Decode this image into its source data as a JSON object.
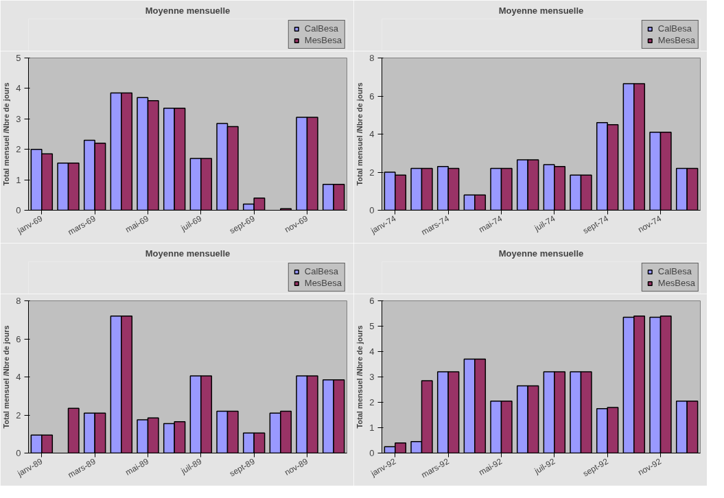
{
  "chart_data": [
    {
      "type": "bar",
      "title": "Moyenne mensuelle",
      "ylabel": "Total mensuel /Nbre de jours",
      "categories": [
        "janv-69",
        null,
        "mars-69",
        null,
        "mai-69",
        null,
        "juil-69",
        null,
        "sept-69",
        null,
        "nov-69",
        null
      ],
      "ylim": [
        0,
        5
      ],
      "yticks": [
        0,
        1,
        2,
        3,
        4,
        5
      ],
      "legend": "top right",
      "series": [
        {
          "name": "CalBesa",
          "color": "#9999ff",
          "values": [
            2.0,
            1.55,
            2.3,
            3.85,
            3.7,
            3.35,
            1.7,
            2.85,
            0.2,
            null,
            3.05,
            0.85
          ]
        },
        {
          "name": "MesBesa",
          "color": "#993366",
          "values": [
            1.85,
            1.55,
            2.2,
            3.85,
            3.6,
            3.35,
            1.7,
            2.75,
            0.4,
            0.05,
            3.05,
            0.85
          ]
        }
      ]
    },
    {
      "type": "bar",
      "title": "Moyenne mensuelle",
      "ylabel": "Total mensuel /Nbre de jours",
      "categories": [
        "janv-74",
        null,
        "mars-74",
        null,
        "mai-74",
        null,
        "juil-74",
        null,
        "sept-74",
        null,
        "nov-74",
        null
      ],
      "ylim": [
        0,
        8
      ],
      "yticks": [
        0,
        2,
        4,
        6,
        8
      ],
      "legend": "top right",
      "series": [
        {
          "name": "CalBesa",
          "color": "#9999ff",
          "values": [
            2.0,
            2.2,
            2.3,
            0.8,
            2.2,
            2.65,
            2.4,
            1.85,
            4.6,
            6.65,
            4.1,
            2.2
          ]
        },
        {
          "name": "MesBesa",
          "color": "#993366",
          "values": [
            1.85,
            2.2,
            2.2,
            0.8,
            2.2,
            2.65,
            2.3,
            1.85,
            4.5,
            6.65,
            4.1,
            2.2
          ]
        }
      ]
    },
    {
      "type": "bar",
      "title": "Moyenne mensuelle",
      "ylabel": "Total mensuel /Nbre de jours",
      "categories": [
        "janv-89",
        null,
        "mars-89",
        null,
        "mai-89",
        null,
        "juil-89",
        null,
        "sept-89",
        null,
        "nov-89",
        null
      ],
      "ylim": [
        0,
        8
      ],
      "yticks": [
        0,
        2,
        4,
        6,
        8
      ],
      "legend": "top right",
      "series": [
        {
          "name": "CalBesa",
          "color": "#9999ff",
          "values": [
            0.95,
            null,
            2.1,
            7.2,
            1.75,
            1.55,
            4.05,
            2.2,
            1.05,
            2.1,
            4.05,
            3.85
          ]
        },
        {
          "name": "MesBesa",
          "color": "#993366",
          "values": [
            0.95,
            2.35,
            2.1,
            7.2,
            1.85,
            1.65,
            4.05,
            2.2,
            1.05,
            2.2,
            4.05,
            3.85
          ]
        }
      ]
    },
    {
      "type": "bar",
      "title": "Moyenne mensuelle",
      "ylabel": "Total mensuel /Nbre de jours",
      "categories": [
        "janv-92",
        null,
        "mars-92",
        null,
        "mai-92",
        null,
        "juil-92",
        null,
        "sept-92",
        null,
        "nov-92",
        null
      ],
      "ylim": [
        0,
        6
      ],
      "yticks": [
        0,
        1,
        2,
        3,
        4,
        5,
        6
      ],
      "legend": "top right",
      "series": [
        {
          "name": "CalBesa",
          "color": "#9999ff",
          "values": [
            0.25,
            0.45,
            3.2,
            3.7,
            2.05,
            2.65,
            3.2,
            3.2,
            1.75,
            5.35,
            5.35,
            2.05
          ]
        },
        {
          "name": "MesBesa",
          "color": "#993366",
          "values": [
            0.4,
            2.85,
            3.2,
            3.7,
            2.05,
            2.65,
            3.2,
            3.2,
            1.8,
            5.4,
            5.4,
            2.05
          ]
        }
      ]
    }
  ]
}
